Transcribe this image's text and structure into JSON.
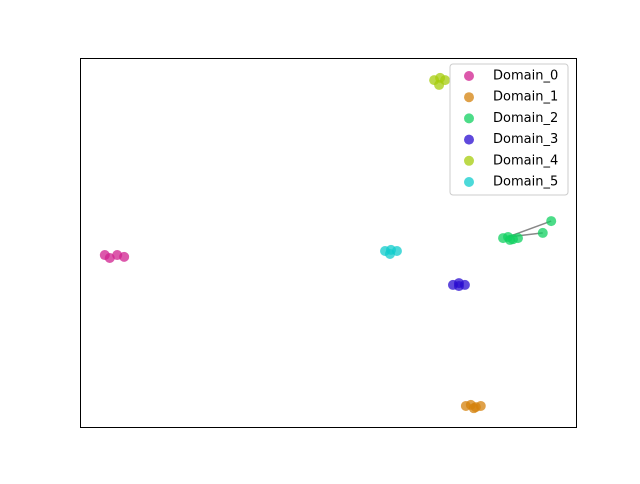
{
  "chart_data": {
    "type": "scatter",
    "xlim": [
      0,
      100
    ],
    "ylim": [
      0,
      100
    ],
    "legend": "upper right",
    "series": [
      {
        "name": "Domain_0",
        "color": "#d0208f",
        "x": [
          5.0,
          6.0,
          7.5,
          8.9
        ],
        "values": [
          46.6,
          45.8,
          46.6,
          46.1
        ]
      },
      {
        "name": "Domain_1",
        "color": "#d4820c",
        "x": [
          77.8,
          78.8,
          79.8,
          80.8,
          79.4
        ],
        "values": [
          5.7,
          6.0,
          5.4,
          5.7,
          5.1
        ]
      },
      {
        "name": "Domain_2",
        "color": "#10d060",
        "x": [
          85.3,
          86.3,
          87.3,
          88.3,
          86.7,
          93.3,
          95.0
        ],
        "values": [
          51.2,
          51.5,
          50.9,
          51.2,
          50.7,
          52.6,
          55.8
        ]
      },
      {
        "name": "Domain_3",
        "color": "#2a0cd0",
        "x": [
          75.2,
          76.4,
          77.6,
          76.4
        ],
        "values": [
          38.5,
          38.2,
          38.5,
          39.0
        ]
      },
      {
        "name": "Domain_4",
        "color": "#a6cc0c",
        "x": [
          71.4,
          72.6,
          73.6,
          72.4
        ],
        "values": [
          94.0,
          94.6,
          94.0,
          92.7
        ]
      },
      {
        "name": "Domain_5",
        "color": "#10cccc",
        "x": [
          61.5,
          62.7,
          63.9,
          62.5
        ],
        "values": [
          47.7,
          48.0,
          47.7,
          46.9
        ]
      }
    ]
  }
}
